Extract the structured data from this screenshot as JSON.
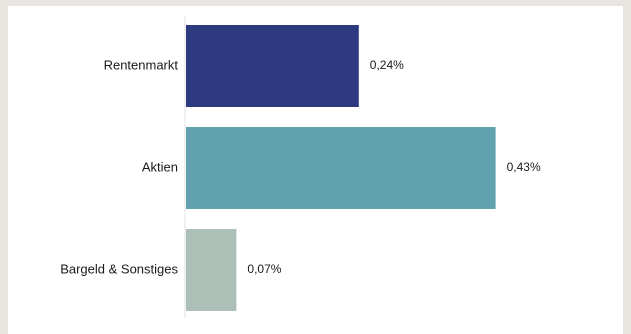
{
  "chart_data": {
    "type": "bar",
    "orientation": "horizontal",
    "categories": [
      "Rentenmarkt",
      "Aktien",
      "Bargeld & Sonstiges"
    ],
    "values": [
      0.24,
      0.43,
      0.07
    ],
    "value_labels": [
      "0,24%",
      "0,43%",
      "0,07%"
    ],
    "colors": [
      "#2e3a7f",
      "#62a1ae",
      "#adc0b8"
    ],
    "xlim": [
      0,
      0.5
    ],
    "grid": false,
    "legend": "none",
    "title": "",
    "xlabel": "",
    "ylabel": ""
  }
}
